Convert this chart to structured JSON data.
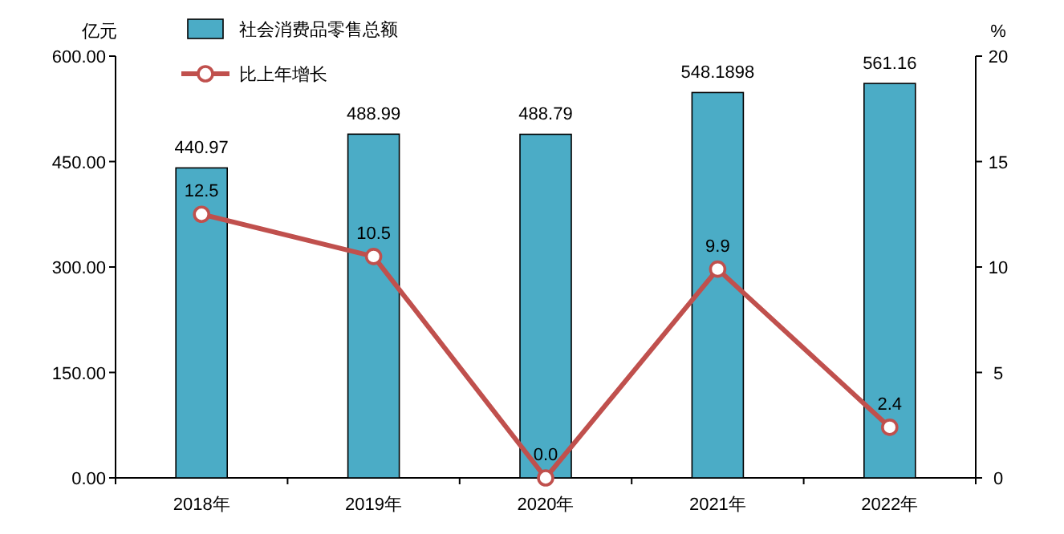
{
  "chart_data": {
    "type": "bar",
    "ylabel": "亿元",
    "y2label": "%",
    "categories": [
      "2018年",
      "2019年",
      "2020年",
      "2021年",
      "2022年"
    ],
    "series": [
      {
        "name": "社会消费品零售总额",
        "color": "#4bacc6",
        "values": [
          440.97,
          488.99,
          488.79,
          548.1898,
          561.16
        ]
      },
      {
        "name": "比上年增长",
        "type": "line",
        "axis": "y2",
        "color": "#c0504d",
        "marker": "circle",
        "values": [
          12.5,
          10.5,
          0.0,
          9.9,
          2.4
        ],
        "value_labels": [
          "12.5",
          "10.5",
          "0.0",
          "9.9",
          "2.4"
        ]
      }
    ],
    "value_labels": [
      "440.97",
      "488.99",
      "488.79",
      "548.1898",
      "561.16"
    ],
    "ylim": [
      0,
      600
    ],
    "yticks": [
      {
        "value": 0,
        "label": "0.00"
      },
      {
        "value": 150,
        "label": "150.00"
      },
      {
        "value": 300,
        "label": "300.00"
      },
      {
        "value": 450,
        "label": "450.00"
      },
      {
        "value": 600,
        "label": "600.00"
      }
    ],
    "y2lim": [
      0,
      20
    ],
    "y2ticks": [
      0,
      5,
      10,
      15,
      20
    ],
    "grid": false,
    "legend": "top left"
  }
}
